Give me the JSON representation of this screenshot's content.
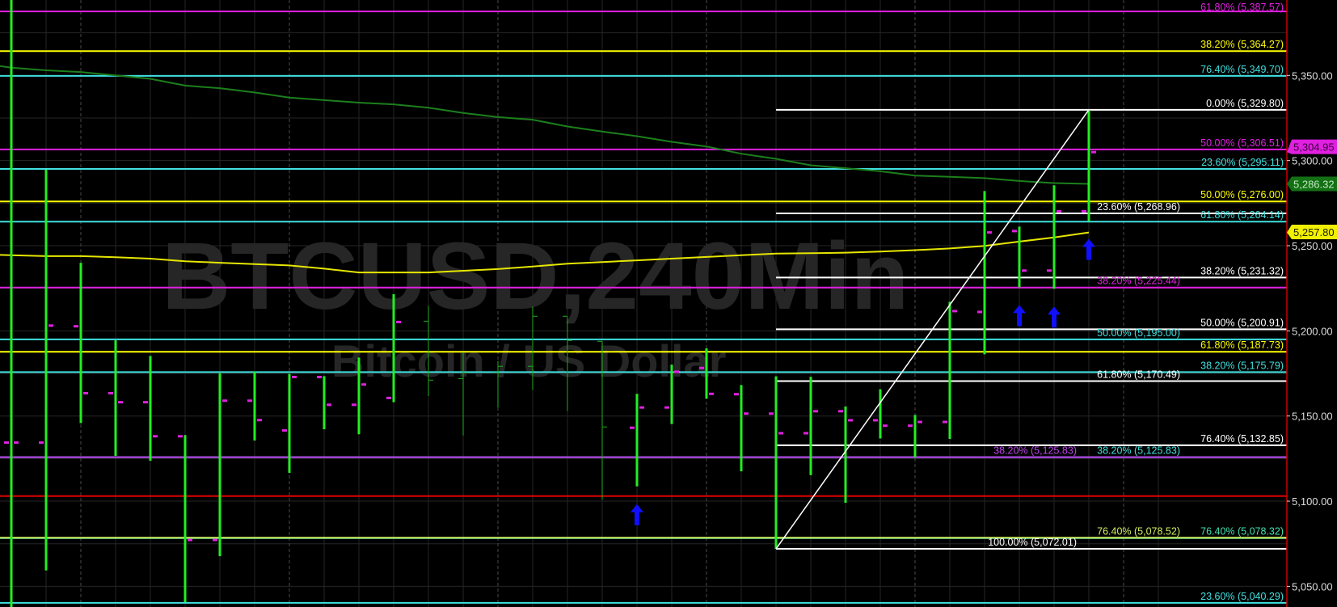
{
  "watermark": {
    "symbol": "BTCUSD,240Min",
    "description": "Bitcoin / US Dollar"
  },
  "colors": {
    "background": "#000000",
    "bar": "#22ee22",
    "bar_tick": "#e020e0",
    "ma_slow": "#1c7f1c",
    "ma_fast": "#e6e600",
    "arrow": "#1010ff",
    "axis": "#cc0000",
    "grid": "#262626"
  },
  "chart_data": {
    "type": "bar",
    "style": "ohlc",
    "ylim": [
      5035,
      5395
    ],
    "y_ticks": [
      "5,350.00",
      "5,300.00",
      "5,250.00",
      "5,200.00",
      "5,150.00",
      "5,100.00",
      "5,050.00"
    ],
    "y_tick_values": [
      5350,
      5300,
      5250,
      5200,
      5150,
      5100,
      5050
    ],
    "grid": true,
    "ohlc": [
      [
        5134.4,
        5400.0,
        5036.0,
        5134.4
      ],
      [
        5134.4,
        5294.6,
        5059.3,
        5203.1
      ],
      [
        5202.7,
        5239.9,
        5145.8,
        5163.4
      ],
      [
        5163.4,
        5194.4,
        5126.6,
        5158.1
      ],
      [
        5158.1,
        5185.3,
        5123.7,
        5138.1
      ],
      [
        5138.1,
        5138.8,
        5040.7,
        5077.2
      ],
      [
        5077.2,
        5175.1,
        5067.7,
        5159.0
      ],
      [
        5159.0,
        5176.1,
        5135.6,
        5147.6
      ],
      [
        5141.5,
        5174.7,
        5116.6,
        5172.9
      ],
      [
        5172.9,
        5173.4,
        5142.2,
        5156.6
      ],
      [
        5156.6,
        5184.3,
        5139.3,
        5168.5
      ],
      [
        5160.6,
        5221.5,
        5158.1,
        5205.2
      ],
      [
        5205.2,
        5214.7,
        5161.7,
        5170.6
      ],
      [
        5171.5,
        5187.4,
        5138.6,
        5174.9
      ],
      [
        5174.9,
        5182.3,
        5155.1,
        5178.7
      ],
      [
        5178.7,
        5214.3,
        5165.2,
        5208.1
      ],
      [
        5208.1,
        5208.1,
        5152.9,
        5193.9
      ],
      [
        5193.4,
        5193.9,
        5100.8,
        5143.1
      ],
      [
        5143.1,
        5163.0,
        5108.7,
        5155.0
      ],
      [
        5155.0,
        5180.2,
        5145.3,
        5176.0
      ],
      [
        5178.2,
        5189.7,
        5160.2,
        5163.0
      ],
      [
        5162.8,
        5168.2,
        5117.5,
        5151.4
      ],
      [
        5151.4,
        5173.3,
        5072.0,
        5139.9
      ],
      [
        5139.9,
        5173.0,
        5115.3,
        5152.8
      ],
      [
        5152.8,
        5155.6,
        5099.0,
        5147.5
      ],
      [
        5147.5,
        5165.7,
        5136.8,
        5144.3
      ],
      [
        5144.3,
        5150.6,
        5125.8,
        5146.5
      ],
      [
        5146.5,
        5217.1,
        5136.5,
        5211.6
      ],
      [
        5211.1,
        5282.1,
        5186.2,
        5257.8
      ],
      [
        5258.6,
        5261.2,
        5225.6,
        5235.4
      ],
      [
        5235.4,
        5285.5,
        5224.7,
        5270.2
      ],
      [
        5270.2,
        5329.8,
        5264.5,
        5304.95
      ]
    ],
    "ma_slow": [
      5354.5,
      5353,
      5352,
      5350,
      5348,
      5344,
      5342.5,
      5340,
      5337,
      5335.5,
      5334,
      5333,
      5331,
      5328,
      5325.5,
      5324,
      5320,
      5317,
      5314.3,
      5311,
      5308.3,
      5304,
      5301,
      5297.2,
      5295.5,
      5293.7,
      5291.2,
      5290.5,
      5289.7,
      5288,
      5286.8,
      5286.32
    ],
    "ma_fast": [
      5244.4,
      5243.9,
      5243.9,
      5243.2,
      5242.4,
      5240.9,
      5240,
      5239.2,
      5238.4,
      5236.5,
      5234.3,
      5234.3,
      5234.3,
      5235.3,
      5236.3,
      5237.8,
      5239.4,
      5240.4,
      5241.4,
      5242.4,
      5243.4,
      5244.4,
      5245.4,
      5245.6,
      5245.9,
      5246.6,
      5247.4,
      5248.4,
      5249.9,
      5252.4,
      5254.9,
      5257.8
    ],
    "buy_arrows_at_bars": [
      18,
      29,
      30,
      31
    ],
    "trendline": {
      "from_bar": 22,
      "from_price": 5072.01,
      "to_bar": 31,
      "to_price": 5329.8
    },
    "levels": [
      {
        "label": "61.80% (5,387.57)",
        "value": 5387.57,
        "color": "#e020e0",
        "from_bar": null
      },
      {
        "label": "38.20% (5,364.27)",
        "value": 5364.27,
        "color": "#ffff00",
        "from_bar": null
      },
      {
        "label": "76.40% (5,349.70)",
        "value": 5349.7,
        "color": "#40e0e0",
        "from_bar": null
      },
      {
        "label": "0.00% (5,329.80)",
        "value": 5329.8,
        "color": "#ffffff",
        "from_bar": 22
      },
      {
        "label": "50.00% (5,306.51)",
        "value": 5306.51,
        "color": "#e020e0",
        "from_bar": null
      },
      {
        "label": "23.60% (5,295.11)",
        "value": 5295.11,
        "color": "#40e0e0",
        "from_bar": null
      },
      {
        "label": "50.00% (5,276.00)",
        "value": 5276.0,
        "color": "#ffff00",
        "from_bar": null
      },
      {
        "label": "23.60% (5,268.96)",
        "value": 5268.96,
        "color": "#ffffff",
        "from_bar": 22
      },
      {
        "label": "61.80% (5,264.14)",
        "value": 5264.14,
        "color": "#40e0e0",
        "from_bar": null
      },
      {
        "label": "38.20% (5,231.32)",
        "value": 5231.32,
        "color": "#ffffff",
        "from_bar": 22
      },
      {
        "label": "38.20% (5,225.44)",
        "value": 5225.44,
        "color": "#e020e0",
        "from_bar": null
      },
      {
        "label": "50.00% (5,200.91)",
        "value": 5200.91,
        "color": "#ffffff",
        "from_bar": 22
      },
      {
        "label": "50.00% (5,195.00)",
        "value": 5195.0,
        "color": "#40e0e0",
        "from_bar": null
      },
      {
        "label": "61.80% (5,187.73)",
        "value": 5187.73,
        "color": "#ffff00",
        "from_bar": null
      },
      {
        "label": "38.20% (5,175.79)",
        "value": 5175.79,
        "color": "#40e0e0",
        "from_bar": null
      },
      {
        "label": "61.80% (5,170.49)",
        "value": 5170.49,
        "color": "#ffffff",
        "from_bar": 22
      },
      {
        "label": "76.40% (5,132.85)",
        "value": 5132.85,
        "color": "#ffffff",
        "from_bar": 22
      },
      {
        "label": "38.20% (5,125.83)",
        "value": 5125.83,
        "color": "#40e0e0",
        "from_bar": null
      },
      {
        "label": "38.20% (5,125.83)",
        "value": 5125.83,
        "color": "#c040f0",
        "from_bar": null
      },
      {
        "label": "",
        "value": 5103.0,
        "color": "#e00000",
        "from_bar": null
      },
      {
        "label": "76.40% (5,078.32)",
        "value": 5078.32,
        "color": "#40e0b0",
        "from_bar": null
      },
      {
        "label": "76.40% (5,078.52)",
        "value": 5078.52,
        "color": "#d0f060",
        "from_bar": null
      },
      {
        "label": "100.00% (5,072.01)",
        "value": 5072.01,
        "color": "#ffffff",
        "from_bar": 22
      },
      {
        "label": "23.60% (5,040.29)",
        "value": 5040.29,
        "color": "#40e0e0",
        "from_bar": null
      }
    ],
    "price_badges": [
      {
        "label": "5,304.95",
        "value": 5304.95,
        "bg": "#e020e0",
        "fg": "#3a003a"
      },
      {
        "label": "5,286.32",
        "value": 5286.32,
        "bg": "#147014",
        "fg": "#bfe8bf"
      },
      {
        "label": "5,257.80",
        "value": 5257.8,
        "bg": "#f0f000",
        "fg": "#202000"
      }
    ]
  }
}
